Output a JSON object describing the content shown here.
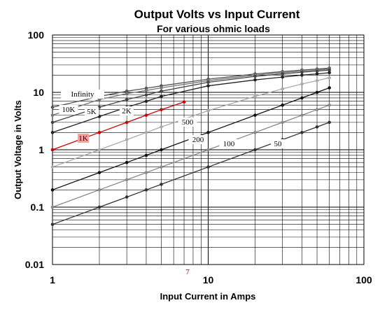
{
  "chart_data": {
    "type": "line",
    "title": "Output Volts vs Input Current",
    "subtitle": "For various ohmic loads",
    "xlabel": "Input Current in Amps",
    "ylabel": "Output Voltage in Volts",
    "xscale": "log",
    "yscale": "log",
    "xlim": [
      1,
      100
    ],
    "ylim": [
      0.01,
      100
    ],
    "grid": true,
    "x_ticks": [
      "1",
      "10",
      "100"
    ],
    "y_ticks": [
      "0.01",
      "0.1",
      "1",
      "10",
      "100"
    ],
    "series": [
      {
        "name": "Infinity",
        "color": "#555555",
        "x": [
          1,
          2,
          3,
          4,
          5,
          10,
          20,
          30,
          40,
          50,
          60
        ],
        "y": [
          5.5,
          8.5,
          10.5,
          11.8,
          13,
          17,
          21,
          23,
          24.5,
          25.5,
          26.5
        ]
      },
      {
        "name": "10K",
        "color": "#777777",
        "x": [
          1,
          2,
          3,
          4,
          5,
          10,
          20,
          30,
          40,
          50,
          60
        ],
        "y": [
          4,
          7.5,
          9.5,
          10.8,
          12,
          16,
          20,
          22,
          23.5,
          24.5,
          25.5
        ]
      },
      {
        "name": "5K",
        "color": "#444444",
        "x": [
          1,
          2,
          3,
          4,
          5,
          10,
          20,
          30,
          40,
          50,
          60
        ],
        "y": [
          3,
          5.5,
          7.5,
          9,
          10.5,
          15,
          19,
          21,
          22.5,
          23.5,
          24.5
        ]
      },
      {
        "name": "2K",
        "color": "#222222",
        "x": [
          1,
          2,
          3,
          4,
          5,
          10,
          20,
          30,
          40,
          50,
          60
        ],
        "y": [
          2,
          3.8,
          5.5,
          7,
          8.5,
          13,
          16.5,
          18.5,
          20,
          21,
          22
        ]
      },
      {
        "name": "1K",
        "color": "#cc0000",
        "x": [
          1,
          2,
          3,
          4,
          5,
          7
        ],
        "y": [
          1,
          2,
          3,
          4,
          5,
          6.8
        ]
      },
      {
        "name": "500",
        "color": "#aaaaaa",
        "x": [
          1,
          2,
          3,
          4,
          5,
          10,
          20,
          30,
          40,
          50,
          60
        ],
        "y": [
          0.5,
          1,
          1.5,
          2,
          2.5,
          4.8,
          8.5,
          11.5,
          14,
          16,
          18
        ]
      },
      {
        "name": "200",
        "color": "#111111",
        "x": [
          1,
          2,
          3,
          4,
          5,
          10,
          20,
          30,
          40,
          50,
          60
        ],
        "y": [
          0.2,
          0.4,
          0.6,
          0.8,
          1,
          2,
          4,
          6,
          8,
          10,
          12
        ]
      },
      {
        "name": "100",
        "color": "#888888",
        "x": [
          1,
          2,
          3,
          4,
          5,
          10,
          20,
          30,
          40,
          50,
          60
        ],
        "y": [
          0.1,
          0.2,
          0.3,
          0.4,
          0.5,
          1,
          2,
          3,
          4,
          5,
          6
        ]
      },
      {
        "name": "50",
        "color": "#333333",
        "x": [
          1,
          2,
          3,
          4,
          5,
          10,
          20,
          30,
          40,
          50,
          60
        ],
        "y": [
          0.05,
          0.1,
          0.15,
          0.2,
          0.25,
          0.5,
          1,
          1.5,
          2,
          2.5,
          3
        ]
      }
    ],
    "annotations": [
      {
        "text": "7",
        "color": "#cc0000"
      }
    ]
  }
}
